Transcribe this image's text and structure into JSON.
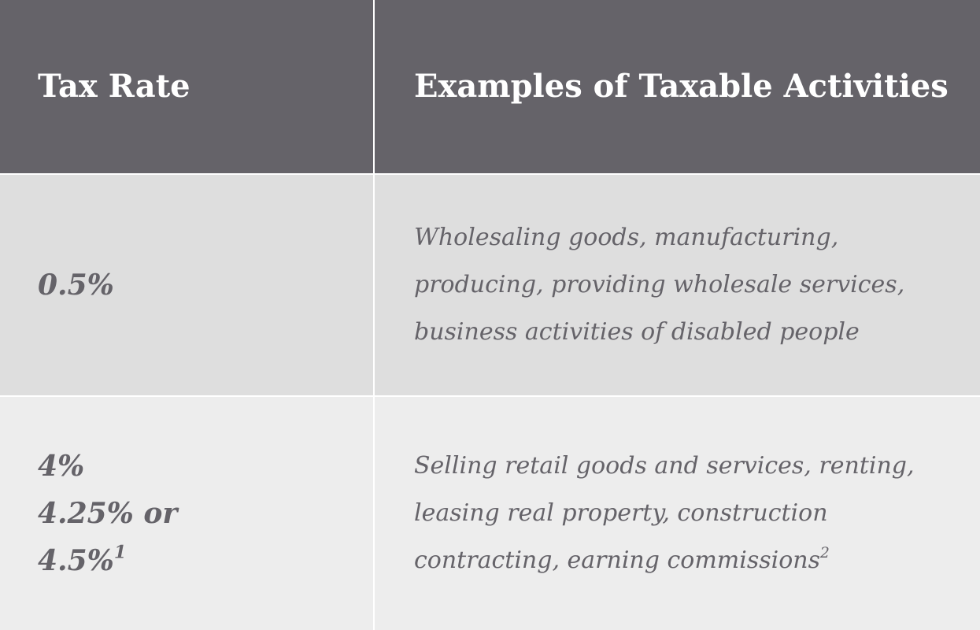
{
  "header": {
    "col_rate": "Tax Rate",
    "col_examples": "Examples of Taxable Activities"
  },
  "rows": [
    {
      "rate_lines": [
        "0.5%"
      ],
      "rate_footnote": "",
      "description": "Wholesaling goods, manufacturing, producing, providing wholesale services, business activities of disabled people",
      "description_footnote": ""
    },
    {
      "rate_lines": [
        "4%",
        "4.25% or",
        "4.5%"
      ],
      "rate_footnote": "1",
      "description": "Selling retail goods and services, renting, leasing real property, construction contracting, earning commissions",
      "description_footnote": "2"
    }
  ],
  "colors": {
    "header_bg": "#656369",
    "row1_bg": "#dedede",
    "row2_bg": "#ededed",
    "text": "#656369"
  }
}
